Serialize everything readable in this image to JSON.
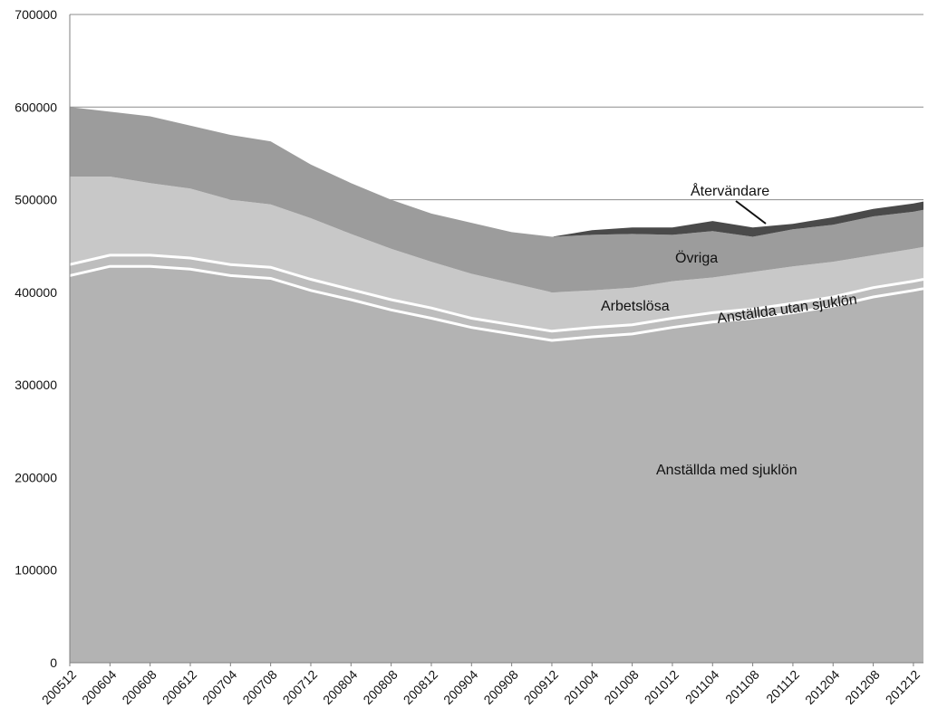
{
  "chart_data": {
    "type": "area",
    "stacked": true,
    "title": "",
    "xlabel": "",
    "ylabel": "",
    "ylim": [
      0,
      700000
    ],
    "y_ticks": [
      "0",
      "100000",
      "200000",
      "300000",
      "400000",
      "500000",
      "600000",
      "700000"
    ],
    "grid": true,
    "legend": "none (direct labels)",
    "x_tick_labels": [
      "200512",
      "200604",
      "200608",
      "200612",
      "200704",
      "200708",
      "200712",
      "200804",
      "200808",
      "200812",
      "200904",
      "200908",
      "200912",
      "201004",
      "201008",
      "201012",
      "201104",
      "201108",
      "201112",
      "201204",
      "201208",
      "201212"
    ],
    "x_anchor_index": [
      0,
      4,
      8,
      12,
      16,
      20,
      24,
      28,
      32,
      36,
      40,
      44,
      48,
      52,
      56,
      60,
      64,
      68,
      72,
      76,
      80,
      84,
      85
    ],
    "series": [
      {
        "name": "Anställda med sjuklön",
        "color": "#b3b3b3",
        "values": [
          418000,
          428000,
          428000,
          425000,
          418000,
          415000,
          402000,
          392000,
          381000,
          372000,
          362000,
          355000,
          348000,
          352000,
          355000,
          362000,
          368000,
          372000,
          378000,
          385000,
          395000,
          402000,
          404000
        ]
      },
      {
        "name": "Anställda utan sjuklön",
        "color": "#bdbdbd",
        "values": [
          12000,
          12000,
          12000,
          12000,
          12000,
          12000,
          12000,
          11000,
          11000,
          11000,
          10000,
          10000,
          10000,
          10000,
          10000,
          10000,
          10000,
          10000,
          10000,
          10000,
          10000,
          10000,
          10000
        ]
      },
      {
        "name": "Arbetslösa",
        "color": "#c8c8c8",
        "values": [
          95000,
          85000,
          78000,
          75000,
          70000,
          68000,
          66000,
          60000,
          55000,
          50000,
          48000,
          45000,
          42000,
          40000,
          40000,
          40000,
          38000,
          40000,
          40000,
          38000,
          35000,
          35000,
          35000
        ]
      },
      {
        "name": "Övriga",
        "color": "#9c9c9c",
        "values": [
          75000,
          70000,
          72000,
          68000,
          70000,
          68000,
          58000,
          55000,
          53000,
          52000,
          55000,
          55000,
          60000,
          60000,
          58000,
          50000,
          50000,
          38000,
          40000,
          40000,
          42000,
          40000,
          40000
        ]
      },
      {
        "name": "Återvändare",
        "color": "#4a4a4a",
        "values": [
          0,
          0,
          0,
          0,
          0,
          0,
          0,
          0,
          0,
          0,
          0,
          0,
          0,
          5000,
          7000,
          8000,
          11000,
          10000,
          6000,
          8000,
          8000,
          9000,
          9000
        ]
      }
    ],
    "annotations": [
      {
        "text": "Återvändare"
      },
      {
        "text": "Övriga"
      },
      {
        "text": "Arbetslösa"
      },
      {
        "text": "Anställda utan sjuklön"
      },
      {
        "text": "Anställda med sjuklön"
      }
    ]
  }
}
